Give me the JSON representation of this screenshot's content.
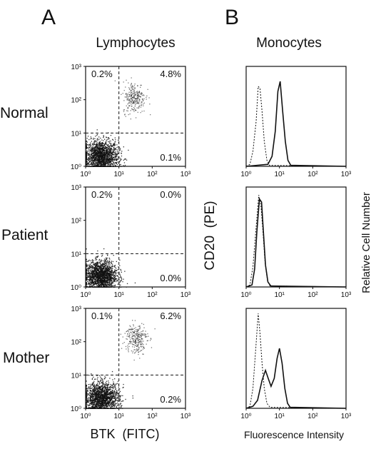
{
  "panel_a": {
    "letter": "A",
    "title": "Lymphocytes",
    "xlabel": "BTK  (FITC)",
    "ylabel": "CD20  (PE)"
  },
  "panel_b": {
    "letter": "B",
    "title": "Monocytes",
    "xlabel": "Fluorescence Intensity",
    "ylabel": "Relative Cell Number"
  },
  "tick_labels": [
    "10⁰",
    "10¹",
    "10²",
    "10³"
  ],
  "colors": {
    "ink": "#111111",
    "background": "#ffffff"
  },
  "chart_data": [
    {
      "type": "scatter",
      "row": "Normal",
      "xlabel": "BTK  (FITC)",
      "ylabel": "CD20  (PE)",
      "xscale": "log",
      "yscale": "log",
      "xlim": [
        1,
        1000
      ],
      "ylim": [
        1,
        1000
      ],
      "quadrant_gate": {
        "x": 10,
        "y": 10
      },
      "quadrants": {
        "upper_left": "0.2%",
        "upper_right": "4.8%",
        "lower_right": "0.1%"
      },
      "clusters": [
        {
          "center_x": 2.8,
          "center_y": 2.0,
          "spread": 0.26,
          "density": "dense"
        },
        {
          "center_x": 28,
          "center_y": 120,
          "spread": 0.17,
          "density": "moderate"
        }
      ]
    },
    {
      "type": "scatter",
      "row": "Patient",
      "xscale": "log",
      "yscale": "log",
      "xlim": [
        1,
        1000
      ],
      "ylim": [
        1,
        1000
      ],
      "quadrant_gate": {
        "x": 10,
        "y": 10
      },
      "quadrants": {
        "upper_left": "0.2%",
        "upper_right": "0.0%",
        "lower_right": "0.0%"
      },
      "clusters": [
        {
          "center_x": 2.8,
          "center_y": 2.2,
          "spread": 0.24,
          "density": "dense"
        }
      ]
    },
    {
      "type": "scatter",
      "row": "Mother",
      "xscale": "log",
      "yscale": "log",
      "xlim": [
        1,
        1000
      ],
      "ylim": [
        1,
        1000
      ],
      "quadrant_gate": {
        "x": 10,
        "y": 10
      },
      "quadrants": {
        "upper_left": "0.1%",
        "upper_right": "6.2%",
        "lower_right": "0.2%"
      },
      "clusters": [
        {
          "center_x": 3.0,
          "center_y": 2.0,
          "spread": 0.26,
          "density": "dense"
        },
        {
          "center_x": 32,
          "center_y": 130,
          "spread": 0.17,
          "density": "moderate"
        }
      ]
    },
    {
      "type": "line",
      "row": "Normal",
      "xlabel": "Fluorescence Intensity",
      "ylabel": "Relative Cell Number",
      "xscale": "log",
      "xlim": [
        1,
        1000
      ],
      "series": [
        {
          "style": "dashed",
          "x": [
            1.3,
            1.6,
            2.0,
            2.3,
            2.6,
            3.0,
            3.5,
            4.2,
            5.0
          ],
          "y": [
            0.02,
            0.15,
            0.45,
            0.8,
            0.78,
            0.55,
            0.25,
            0.06,
            0.01
          ]
        },
        {
          "style": "solid",
          "x": [
            4.5,
            6.0,
            7.5,
            9.0,
            10.5,
            12.5,
            15.0,
            18.0,
            22.0
          ],
          "y": [
            0.02,
            0.1,
            0.35,
            0.75,
            0.85,
            0.55,
            0.25,
            0.06,
            0.01
          ]
        }
      ]
    },
    {
      "type": "line",
      "row": "Patient",
      "xscale": "log",
      "xlim": [
        1,
        1000
      ],
      "series": [
        {
          "style": "dashed",
          "x": [
            1.3,
            1.6,
            2.0,
            2.4,
            2.8,
            3.2,
            3.7,
            4.4,
            5.2
          ],
          "y": [
            0.02,
            0.2,
            0.6,
            0.92,
            0.8,
            0.55,
            0.25,
            0.06,
            0.01
          ]
        },
        {
          "style": "solid",
          "x": [
            1.5,
            1.8,
            2.1,
            2.5,
            2.9,
            3.3,
            3.8,
            4.5,
            5.5
          ],
          "y": [
            0.02,
            0.18,
            0.55,
            0.88,
            0.85,
            0.55,
            0.22,
            0.05,
            0.01
          ]
        }
      ]
    },
    {
      "type": "line",
      "row": "Mother",
      "xscale": "log",
      "xlim": [
        1,
        1000
      ],
      "series": [
        {
          "style": "dashed",
          "x": [
            1.3,
            1.6,
            2.0,
            2.3,
            2.6,
            3.0,
            3.5,
            4.2,
            5.2
          ],
          "y": [
            0.02,
            0.2,
            0.65,
            0.95,
            0.75,
            0.45,
            0.2,
            0.05,
            0.01
          ]
        },
        {
          "style": "solid",
          "x": [
            1.6,
            2.2,
            3.0,
            3.8,
            4.6,
            5.6,
            7.0,
            8.5,
            10.0,
            12.0,
            14.5,
            17.5,
            21.0
          ],
          "y": [
            0.02,
            0.08,
            0.28,
            0.38,
            0.3,
            0.22,
            0.3,
            0.5,
            0.6,
            0.45,
            0.2,
            0.05,
            0.01
          ]
        }
      ]
    }
  ],
  "rows": [
    "Normal",
    "Patient",
    "Mother"
  ]
}
